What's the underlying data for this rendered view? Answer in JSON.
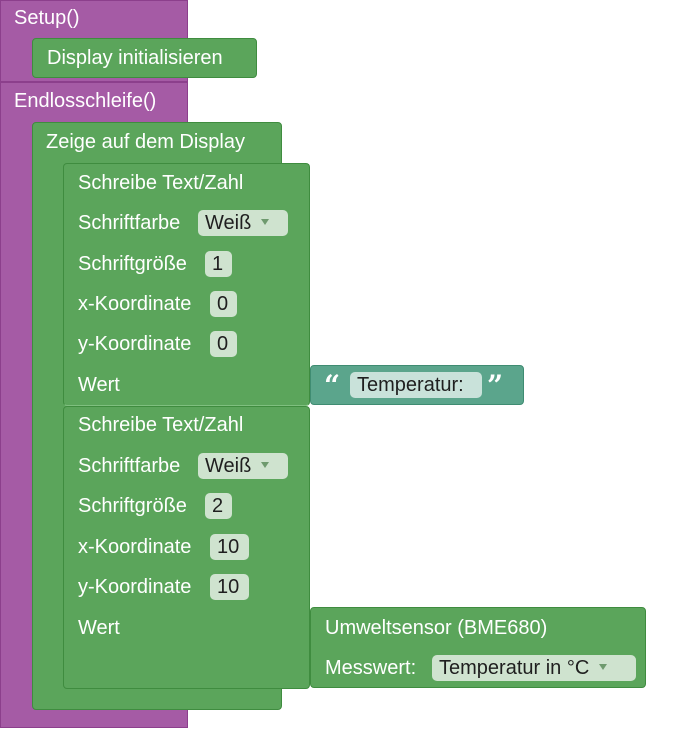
{
  "setup": {
    "label": "Setup()",
    "display_init": "Display initialisieren"
  },
  "loop": {
    "label": "Endlosschleife()",
    "show_display": "Zeige auf dem Display",
    "write1": {
      "title": "Schreibe Text/Zahl",
      "color_label": "Schriftfarbe",
      "color_value": "Weiß",
      "size_label": "Schriftgröße",
      "size_value": "1",
      "x_label": "x-Koordinate",
      "x_value": "0",
      "y_label": "y-Koordinate",
      "y_value": "0",
      "value_label": "Wert",
      "text_value": "Temperatur:",
      "open_quote": "“",
      "close_quote": "”"
    },
    "write2": {
      "title": "Schreibe Text/Zahl",
      "color_label": "Schriftfarbe",
      "color_value": "Weiß",
      "size_label": "Schriftgröße",
      "size_value": "2",
      "x_label": "x-Koordinate",
      "x_value": "10",
      "y_label": "y-Koordinate",
      "y_value": "10",
      "value_label": "Wert",
      "sensor_label": "Umweltsensor (BME680)",
      "measure_label": "Messwert:",
      "measure_value": "Temperatur in °C"
    }
  },
  "colors": {
    "function_block": "#a55ba5",
    "display_block": "#5ba55b",
    "text_block": "#5ba58c"
  }
}
